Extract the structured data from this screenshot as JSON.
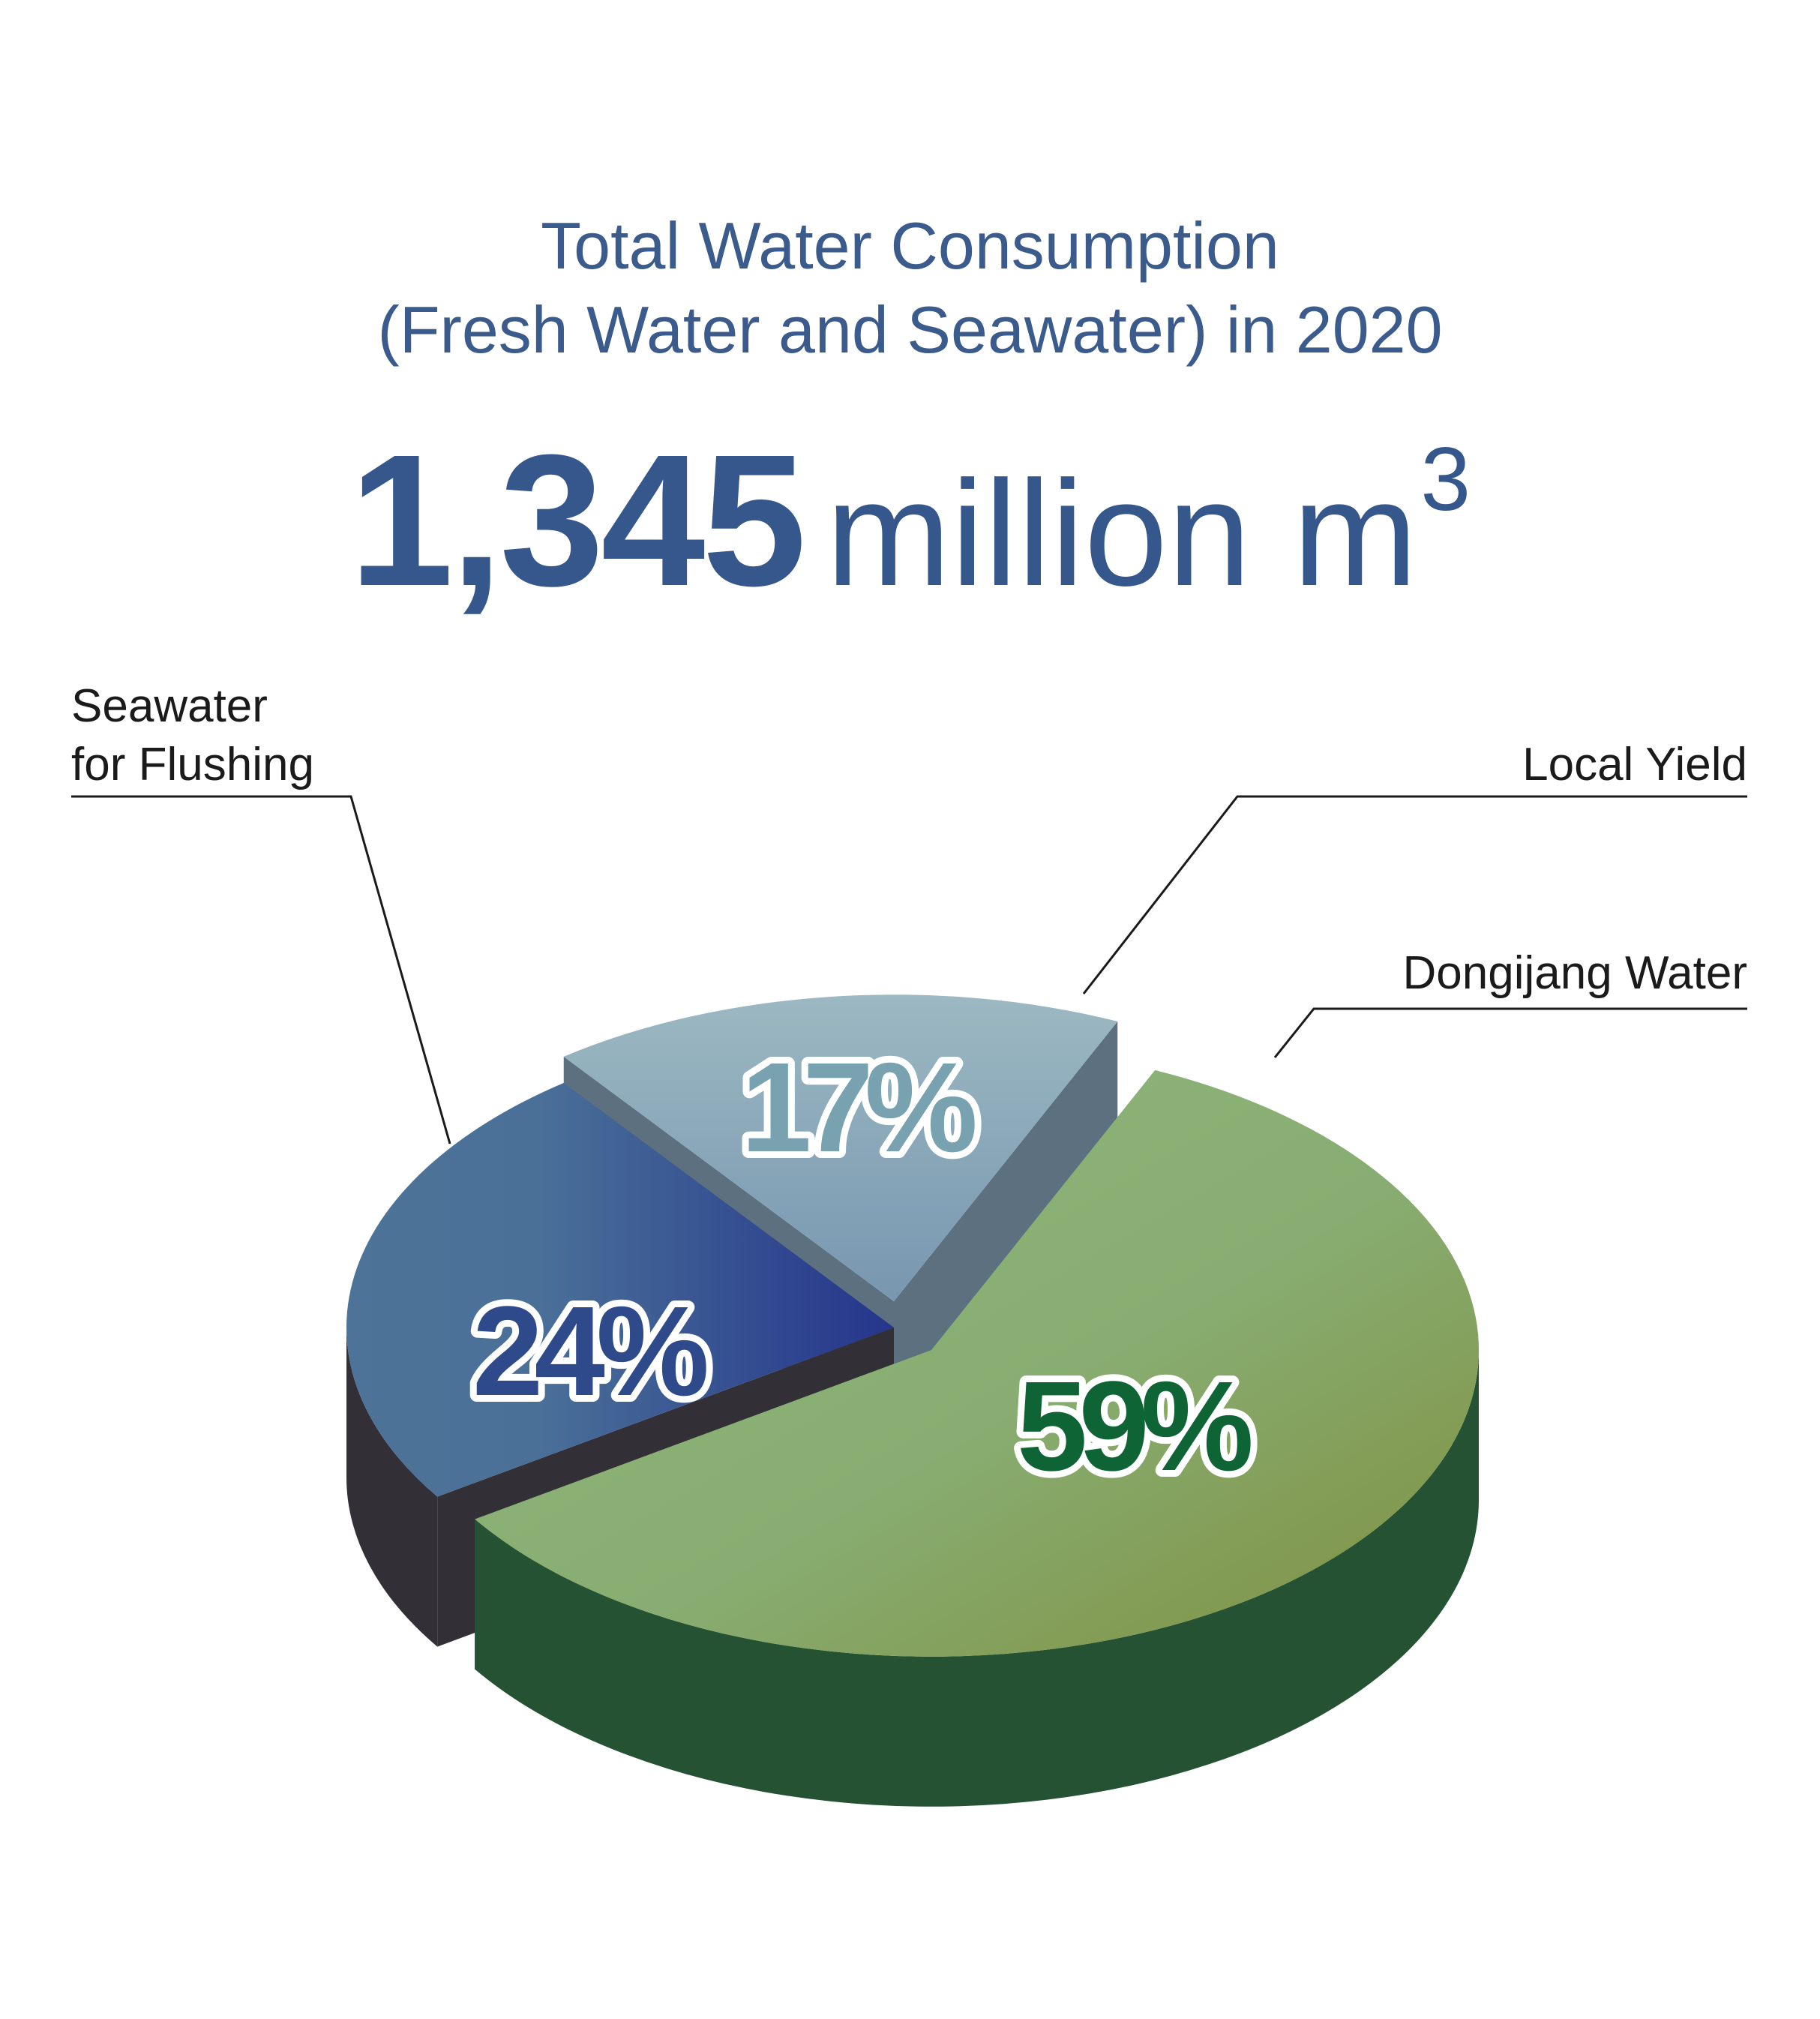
{
  "title_line1": "Total Water Consumption",
  "title_line2": "(Fresh Water and Seawater) in 2020",
  "total": {
    "value": "1,345",
    "unit": "million m",
    "unit_sup": "3"
  },
  "colors": {
    "title": "#3b5b8c",
    "seawater": "#4a6f97",
    "local_yield": "#92b0bf",
    "dongjiang": "#8aab72",
    "dongjiang_side": "#245233",
    "seawater_side": "#332f36",
    "label_seawater": "#2f4a8a",
    "label_local": "#79a2b0",
    "label_dongjiang": "#0f6435"
  },
  "chart_data": {
    "type": "pie",
    "title": "Total Water Consumption (Fresh Water and Seawater) in 2020",
    "slices": [
      {
        "name": "Dongjiang Water",
        "value": 59,
        "label": "59%"
      },
      {
        "name": "Seawater for Flushing",
        "value": 24,
        "label": "24%"
      },
      {
        "name": "Local Yield",
        "value": 17,
        "label": "17%"
      }
    ],
    "callouts": {
      "seawater_line1": "Seawater",
      "seawater_line2": "for Flushing",
      "local": "Local Yield",
      "dongjiang": "Dongijang Water"
    }
  }
}
